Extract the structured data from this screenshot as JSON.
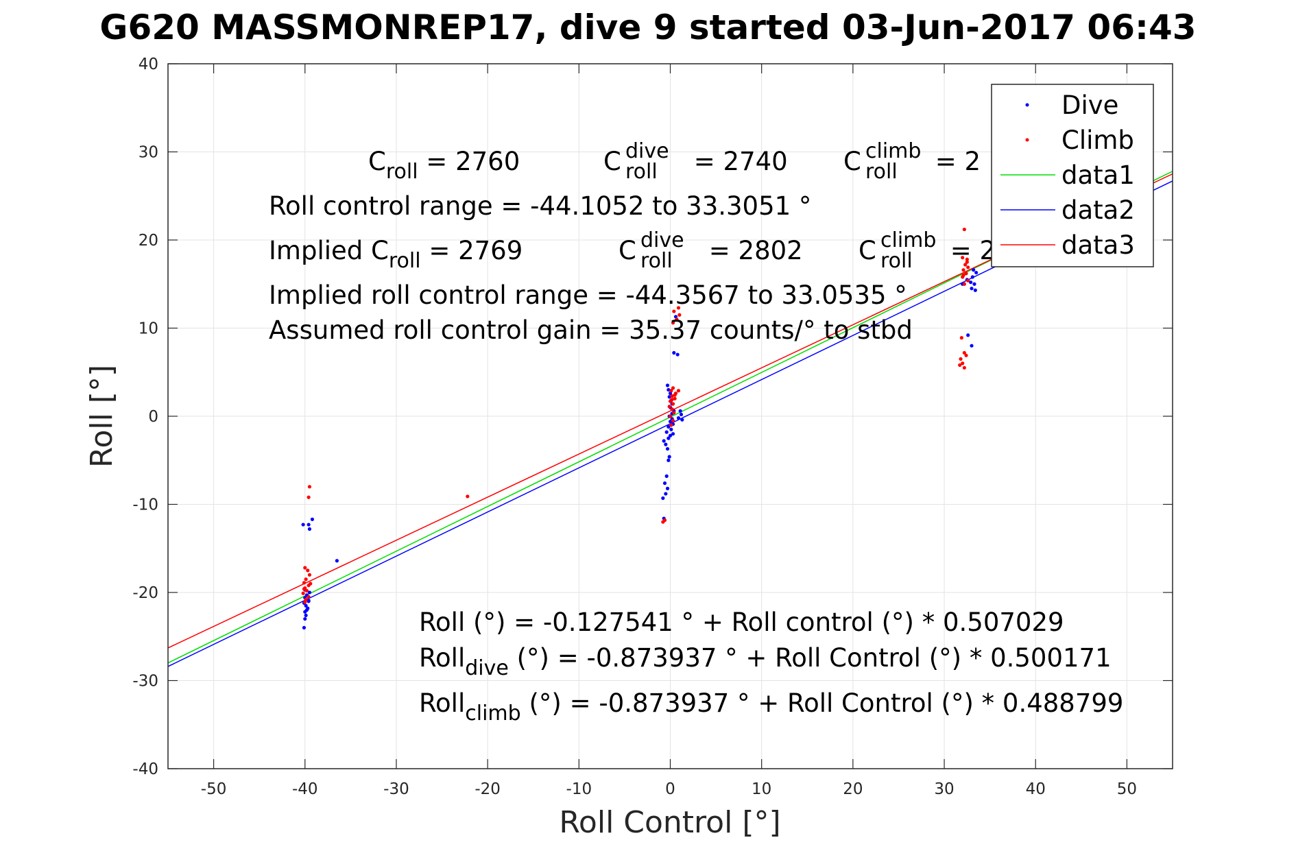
{
  "chart_data": {
    "type": "scatter",
    "title": "G620 MASSMONREP17, dive 9 started 03-Jun-2017 06:43",
    "xlabel": "Roll Control [°]",
    "ylabel": "Roll [°]",
    "xlim": [
      -55,
      55
    ],
    "ylim": [
      -40,
      40
    ],
    "xticks": [
      -50,
      -40,
      -30,
      -20,
      -10,
      0,
      10,
      20,
      30,
      40,
      50
    ],
    "yticks": [
      -40,
      -30,
      -20,
      -10,
      0,
      10,
      20,
      30,
      40
    ],
    "grid": true,
    "legend_position": "top-right",
    "colors": {
      "dive": "#0000ff",
      "climb": "#ff0000",
      "data1": "#00dd00",
      "data2": "#0000ff",
      "data3": "#ff0000"
    },
    "series": [
      {
        "name": "Dive",
        "kind": "points",
        "color": "#0000ff",
        "points": [
          [
            -40.1,
            -24.0
          ],
          [
            -40.0,
            -23.0
          ],
          [
            -39.9,
            -22.6
          ],
          [
            -40.0,
            -22.2
          ],
          [
            -39.7,
            -21.8
          ],
          [
            -39.9,
            -21.5
          ],
          [
            -40.1,
            -21.2
          ],
          [
            -39.6,
            -20.9
          ],
          [
            -40.0,
            -20.6
          ],
          [
            -39.8,
            -20.3
          ],
          [
            -39.5,
            -20.0
          ],
          [
            -40.0,
            -19.7
          ],
          [
            -39.6,
            -21.0
          ],
          [
            -39.8,
            -22.0
          ],
          [
            -40.2,
            -12.3
          ],
          [
            -39.6,
            -12.3
          ],
          [
            -39.5,
            -12.8
          ],
          [
            -39.2,
            -11.7
          ],
          [
            -36.5,
            -16.4
          ],
          [
            -0.7,
            -11.6
          ],
          [
            -0.8,
            -9.3
          ],
          [
            -0.5,
            -8.8
          ],
          [
            -0.3,
            -8.2
          ],
          [
            -0.6,
            -7.6
          ],
          [
            -0.4,
            -6.8
          ],
          [
            -0.2,
            -5.0
          ],
          [
            -0.1,
            -4.6
          ],
          [
            -0.3,
            -3.7
          ],
          [
            -0.5,
            -3.2
          ],
          [
            -0.7,
            -2.8
          ],
          [
            -0.2,
            -2.5
          ],
          [
            0.0,
            -2.2
          ],
          [
            0.3,
            -2.0
          ],
          [
            -0.4,
            -1.8
          ],
          [
            0.1,
            -1.5
          ],
          [
            -0.2,
            -1.2
          ],
          [
            0.3,
            -0.9
          ],
          [
            0.0,
            -0.6
          ],
          [
            0.2,
            -0.3
          ],
          [
            -0.1,
            0.0
          ],
          [
            0.2,
            0.3
          ],
          [
            0.4,
            0.6
          ],
          [
            0.0,
            1.0
          ],
          [
            0.2,
            1.4
          ],
          [
            0.1,
            1.8
          ],
          [
            -0.1,
            2.2
          ],
          [
            0.0,
            2.6
          ],
          [
            -0.2,
            3.0
          ],
          [
            -0.3,
            3.5
          ],
          [
            0.4,
            7.2
          ],
          [
            0.8,
            7.0
          ],
          [
            0.6,
            11.3
          ],
          [
            1.1,
            0.6
          ],
          [
            1.2,
            0.2
          ],
          [
            1.3,
            -0.4
          ],
          [
            0.9,
            -0.2
          ],
          [
            32.0,
            15.0
          ],
          [
            32.5,
            15.5
          ],
          [
            33.0,
            14.5
          ],
          [
            33.3,
            15.0
          ],
          [
            33.1,
            15.8
          ],
          [
            33.5,
            16.3
          ],
          [
            33.2,
            16.6
          ],
          [
            33.4,
            14.3
          ],
          [
            32.9,
            15.2
          ],
          [
            33.0,
            8.0
          ],
          [
            32.6,
            9.2
          ],
          [
            35.4,
            18.1
          ]
        ]
      },
      {
        "name": "Climb",
        "kind": "points",
        "color": "#ff0000",
        "points": [
          [
            -39.5,
            -8.0
          ],
          [
            -39.6,
            -9.2
          ],
          [
            -39.7,
            -17.5
          ],
          [
            -40.0,
            -17.2
          ],
          [
            -39.5,
            -18.0
          ],
          [
            -39.9,
            -18.5
          ],
          [
            -40.1,
            -18.9
          ],
          [
            -39.6,
            -19.2
          ],
          [
            -40.0,
            -19.5
          ],
          [
            -39.8,
            -19.8
          ],
          [
            -40.2,
            -20.1
          ],
          [
            -39.6,
            -20.5
          ],
          [
            -39.9,
            -20.8
          ],
          [
            -40.0,
            -21.1
          ],
          [
            -39.4,
            -19.0
          ],
          [
            -40.1,
            -19.6
          ],
          [
            -22.2,
            -9.1
          ],
          [
            -0.8,
            -12.0
          ],
          [
            -0.6,
            -11.8
          ],
          [
            0.1,
            -1.0
          ],
          [
            0.3,
            -0.5
          ],
          [
            0.0,
            0.0
          ],
          [
            0.4,
            0.4
          ],
          [
            0.2,
            0.8
          ],
          [
            -0.1,
            1.1
          ],
          [
            0.3,
            1.4
          ],
          [
            0.0,
            1.7
          ],
          [
            0.5,
            2.0
          ],
          [
            0.2,
            2.3
          ],
          [
            0.6,
            2.6
          ],
          [
            0.1,
            2.9
          ],
          [
            0.3,
            3.2
          ],
          [
            0.5,
            2.4
          ],
          [
            0.2,
            1.9
          ],
          [
            0.7,
            11.0
          ],
          [
            0.3,
            10.6
          ],
          [
            1.0,
            11.5
          ],
          [
            0.9,
            12.3
          ],
          [
            0.4,
            11.9
          ],
          [
            0.9,
            2.9
          ],
          [
            32.2,
            21.2
          ],
          [
            32.0,
            18.0
          ],
          [
            32.5,
            17.8
          ],
          [
            32.3,
            17.2
          ],
          [
            32.6,
            16.9
          ],
          [
            32.1,
            16.6
          ],
          [
            32.4,
            16.2
          ],
          [
            32.0,
            15.8
          ],
          [
            32.6,
            15.4
          ],
          [
            32.2,
            15.0
          ],
          [
            32.5,
            17.5
          ],
          [
            32.1,
            16.0
          ],
          [
            31.8,
            6.5
          ],
          [
            32.0,
            6.0
          ],
          [
            31.7,
            5.8
          ],
          [
            32.2,
            5.5
          ],
          [
            32.4,
            6.9
          ],
          [
            32.2,
            7.2
          ],
          [
            31.9,
            8.9
          ]
        ]
      },
      {
        "name": "data1",
        "kind": "line",
        "color": "#00dd00",
        "points": [
          [
            -55,
            -28.0
          ],
          [
            55,
            27.8
          ]
        ]
      },
      {
        "name": "data2",
        "kind": "line",
        "color": "#0000ff",
        "points": [
          [
            -55,
            -28.4
          ],
          [
            55,
            26.7
          ]
        ]
      },
      {
        "name": "data3",
        "kind": "line",
        "color": "#ff0000",
        "points": [
          [
            -55,
            -26.3
          ],
          [
            55,
            27.5
          ]
        ]
      }
    ],
    "annotations": {
      "croll_label": "C",
      "croll_sub": "roll",
      "croll_value": " = 2760",
      "cdive_label": "C",
      "cdive_sup": "dive",
      "cdive_sub": "roll",
      "cdive_value": " = 2740",
      "cclimb_label": "C",
      "cclimb_sup": "climb",
      "cclimb_sub": "roll",
      "cclimb_value": " = 2",
      "range_line": "Roll control range = -44.1052 to 33.3051 °",
      "implied_label": "Implied C",
      "implied_sub": "roll",
      "implied_value": " = 2769",
      "implied_dive_label": "C",
      "implied_dive_sup": "dive",
      "implied_dive_sub": "roll",
      "implied_dive_value": " = 2802",
      "implied_climb_label": "C",
      "implied_climb_sup": "climb",
      "implied_climb_sub": "roll",
      "implied_climb_value": " = 2",
      "implied_range_line": "Implied roll control range = -44.3567 to 33.0535 °",
      "gain_line": "Assumed roll control gain = 35.37 counts/° to stbd",
      "fit_line": "Roll (°) = -0.127541 ° + Roll control (°) * 0.507029",
      "fit_dive_label": "Roll",
      "fit_dive_sub": "dive",
      "fit_dive_rest": " (°) = -0.873937 ° + Roll Control (°) * 0.500171",
      "fit_climb_label": "Roll",
      "fit_climb_sub": "climb",
      "fit_climb_rest": " (°) = -0.873937 ° + Roll Control (°) * 0.488799"
    }
  }
}
